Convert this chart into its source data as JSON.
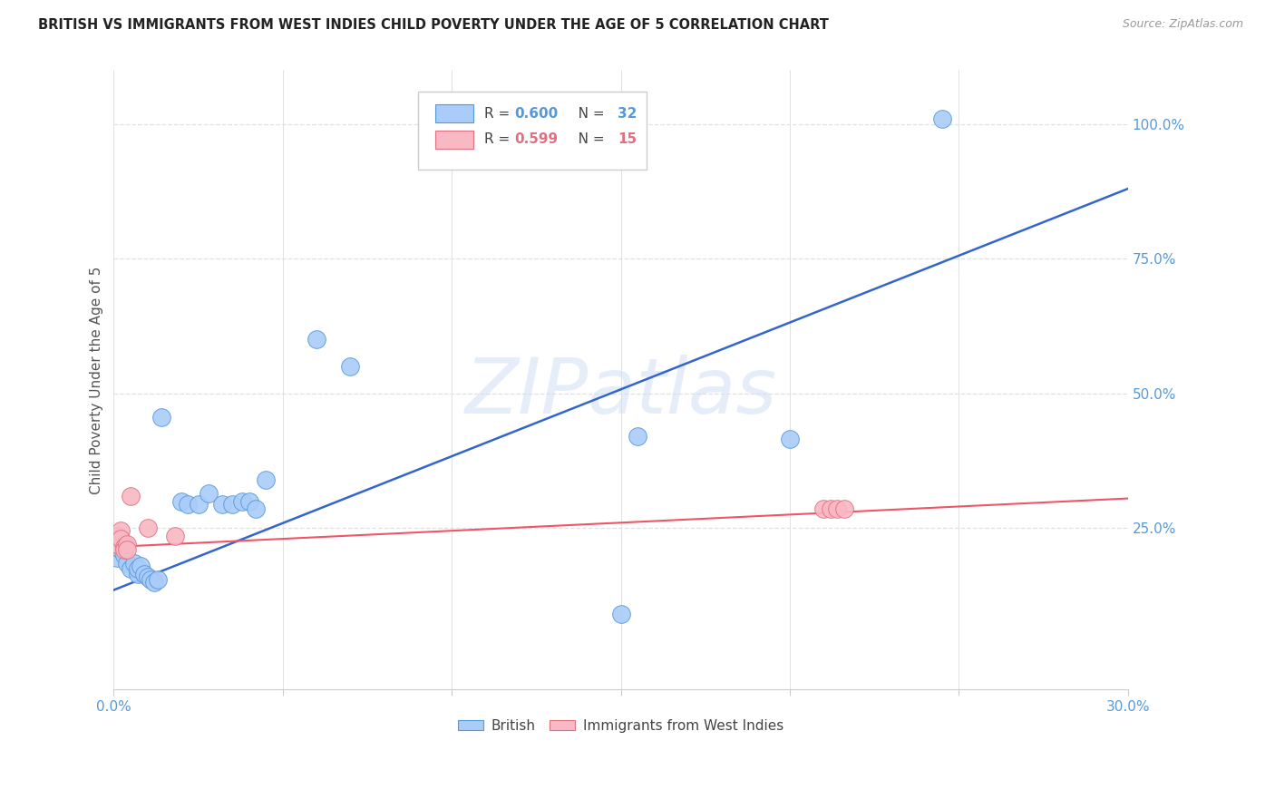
{
  "title": "BRITISH VS IMMIGRANTS FROM WEST INDIES CHILD POVERTY UNDER THE AGE OF 5 CORRELATION CHART",
  "source": "Source: ZipAtlas.com",
  "ylabel_label": "Child Poverty Under the Age of 5",
  "xlim": [
    0.0,
    0.3
  ],
  "ylim": [
    -0.05,
    1.1
  ],
  "xticks": [
    0.0,
    0.05,
    0.1,
    0.15,
    0.2,
    0.25,
    0.3
  ],
  "xtick_labels": [
    "0.0%",
    "",
    "",
    "",
    "",
    "",
    "30.0%"
  ],
  "ytick_vals": [
    0.25,
    0.5,
    0.75,
    1.0
  ],
  "ytick_labels": [
    "25.0%",
    "50.0%",
    "75.0%",
    "100.0%"
  ],
  "british_color": "#aaccf8",
  "british_edge_color": "#5599dd",
  "pink_color": "#f8b8c4",
  "pink_edge_color": "#e07080",
  "line_blue_color": "#3366cc",
  "line_pink_color": "#ee5566",
  "legend_r_british": "0.600",
  "legend_n_british": "32",
  "legend_r_pink": "0.599",
  "legend_n_pink": "15",
  "watermark": "ZIPatlas",
  "british_x": [
    0.001,
    0.002,
    0.003,
    0.003,
    0.004,
    0.005,
    0.006,
    0.007,
    0.007,
    0.008,
    0.009,
    0.01,
    0.011,
    0.012,
    0.013,
    0.014,
    0.02,
    0.022,
    0.025,
    0.028,
    0.032,
    0.035,
    0.038,
    0.04,
    0.042,
    0.045,
    0.06,
    0.07,
    0.15,
    0.155,
    0.2,
    0.245
  ],
  "british_y": [
    0.195,
    0.21,
    0.2,
    0.22,
    0.185,
    0.175,
    0.185,
    0.165,
    0.175,
    0.18,
    0.165,
    0.16,
    0.155,
    0.15,
    0.155,
    0.455,
    0.3,
    0.295,
    0.295,
    0.315,
    0.295,
    0.295,
    0.3,
    0.3,
    0.285,
    0.34,
    0.6,
    0.55,
    0.09,
    0.42,
    0.415,
    1.01
  ],
  "pink_x": [
    0.001,
    0.001,
    0.002,
    0.002,
    0.003,
    0.003,
    0.004,
    0.004,
    0.005,
    0.01,
    0.018,
    0.21,
    0.212,
    0.214,
    0.216
  ],
  "pink_y": [
    0.235,
    0.22,
    0.245,
    0.23,
    0.215,
    0.21,
    0.22,
    0.21,
    0.31,
    0.25,
    0.235,
    0.285,
    0.285,
    0.285,
    0.285
  ],
  "british_line_x": [
    0.0,
    0.3
  ],
  "british_line_y": [
    0.135,
    0.88
  ],
  "pink_line_x": [
    0.0,
    0.3
  ],
  "pink_line_y": [
    0.215,
    0.305
  ],
  "marker_size": 200,
  "background_color": "#ffffff",
  "grid_color": "#e0e0e0",
  "axis_color": "#cccccc",
  "title_color": "#222222",
  "ylabel_color": "#555555",
  "tick_color": "#5599dd",
  "legend_text_color_blue": "#5599dd",
  "legend_text_color_pink": "#e07080",
  "label_fontsize": 11,
  "title_fontsize": 10.5
}
